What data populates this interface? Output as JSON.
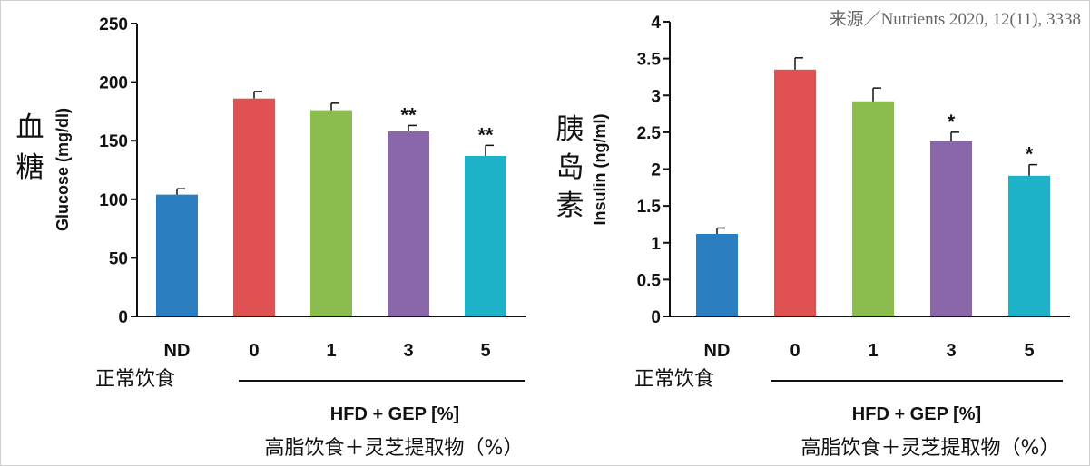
{
  "source_note": "来源／Nutrients 2020, 12(11), 3338",
  "colors": [
    "#2b7fc0",
    "#e05252",
    "#8bbd4e",
    "#8a67a8",
    "#1db2c8"
  ],
  "chart_data": [
    {
      "type": "bar",
      "categories": [
        "ND",
        "0",
        "1",
        "3",
        "5"
      ],
      "values": [
        104,
        186,
        176,
        158,
        137
      ],
      "errors": [
        5,
        6,
        6,
        5,
        9
      ],
      "significance": [
        "",
        "",
        "",
        "**",
        "**"
      ],
      "ylabel": "Glucose (mg/dl)",
      "ylabel_cn": [
        "血",
        "糖"
      ],
      "ylim": [
        0,
        250
      ],
      "yticks": [
        "0",
        "50",
        "100",
        "150",
        "200",
        "250"
      ],
      "control_label": "正常饮食",
      "group_label": "HFD + GEP [%]",
      "group_label_cn": "高脂饮食＋灵芝提取物（%）"
    },
    {
      "type": "bar",
      "categories": [
        "ND",
        "0",
        "1",
        "3",
        "5"
      ],
      "values": [
        1.12,
        3.35,
        2.92,
        2.38,
        1.91
      ],
      "errors": [
        0.08,
        0.16,
        0.18,
        0.12,
        0.15
      ],
      "significance": [
        "",
        "",
        "",
        "*",
        "*"
      ],
      "ylabel": "Insulin (ng/ml)",
      "ylabel_cn": [
        "胰",
        "岛",
        "素"
      ],
      "ylim": [
        0,
        4
      ],
      "yticks": [
        "0",
        "0.5",
        "1",
        "1.5",
        "2",
        "2.5",
        "3",
        "3.5",
        "4"
      ],
      "control_label": "正常饮食",
      "group_label": "HFD + GEP [%]",
      "group_label_cn": "高脂饮食＋灵芝提取物（%）"
    }
  ]
}
